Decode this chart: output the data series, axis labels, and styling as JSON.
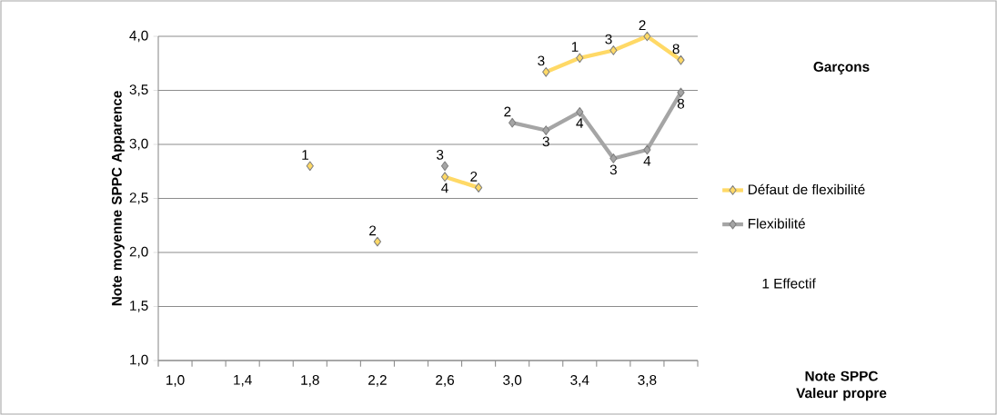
{
  "chart_data": {
    "type": "line",
    "title": "Garçons",
    "ylabel": "Note moyenne SPPC Apparence",
    "xlim": [
      0.9,
      4.1
    ],
    "xticks": [
      {
        "value": 1.0,
        "label": "1,0"
      },
      {
        "value": 1.4,
        "label": "1,4"
      },
      {
        "value": 1.8,
        "label": "1,8"
      },
      {
        "value": 2.2,
        "label": "2,2"
      },
      {
        "value": 2.6,
        "label": "2,6"
      },
      {
        "value": 3.0,
        "label": "3,0"
      },
      {
        "value": 3.4,
        "label": "3,4"
      },
      {
        "value": 3.8,
        "label": "3,8"
      },
      {
        "value": 0.9,
        "label": null
      },
      {
        "value": 1.1,
        "label": null
      },
      {
        "value": 1.3,
        "label": null
      },
      {
        "value": 1.5,
        "label": null
      },
      {
        "value": 1.7,
        "label": null
      },
      {
        "value": 1.9,
        "label": null
      },
      {
        "value": 2.1,
        "label": null
      },
      {
        "value": 2.3,
        "label": null
      },
      {
        "value": 2.5,
        "label": null
      },
      {
        "value": 2.7,
        "label": null
      },
      {
        "value": 2.9,
        "label": null
      },
      {
        "value": 3.1,
        "label": null
      },
      {
        "value": 3.3,
        "label": null
      },
      {
        "value": 3.5,
        "label": null
      },
      {
        "value": 3.7,
        "label": null
      },
      {
        "value": 3.9,
        "label": null
      },
      {
        "value": 4.1,
        "label": null
      }
    ],
    "series": [
      {
        "name": "Défaut de flexibilité",
        "color": "#ffd966",
        "x": [
          1.8,
          2.0,
          2.2,
          2.4,
          2.6,
          2.8,
          3.0,
          3.2,
          3.4,
          3.6,
          3.8,
          4.0
        ],
        "values": [
          2.8,
          null,
          2.1,
          null,
          2.7,
          2.6,
          null,
          3.67,
          3.8,
          3.87,
          4.0,
          3.78
        ]
      },
      {
        "name": "Flexibilité",
        "color": "#a5a5a5",
        "x": [
          2.6,
          2.8,
          3.0,
          3.2,
          3.4,
          3.6,
          3.8,
          4.0
        ],
        "values": [
          2.8,
          null,
          3.2,
          3.13,
          3.3,
          2.87,
          2.95,
          3.48
        ]
      }
    ],
    "ylim": [
      1,
      4
    ],
    "yticks": [
      {
        "value": 1,
        "label": "1,0"
      },
      {
        "value": 1.5,
        "label": "1,5"
      },
      {
        "value": 2,
        "label": "2,0"
      },
      {
        "value": 2.5,
        "label": "2,5"
      },
      {
        "value": 3,
        "label": "3,0"
      },
      {
        "value": 3.5,
        "label": "3,5"
      },
      {
        "value": 4,
        "label": "4,0"
      }
    ],
    "grid": "y",
    "legend": "right",
    "marker": "diamond",
    "line_style": "solid",
    "annotations": [
      {
        "text": "1",
        "x": 1.8,
        "y": 2.8
      },
      {
        "text": "2",
        "x": 2.2,
        "y": 2.1
      },
      {
        "text": "4",
        "x": 2.6,
        "y": 2.7
      },
      {
        "text": "2",
        "x": 2.8,
        "y": 2.6
      },
      {
        "text": "3",
        "x": 3.2,
        "y": 3.67
      },
      {
        "text": "1",
        "x": 3.4,
        "y": 3.8
      },
      {
        "text": "3",
        "x": 3.6,
        "y": 3.87
      },
      {
        "text": "2",
        "x": 3.8,
        "y": 4.0
      },
      {
        "text": "8",
        "x": 4.0,
        "y": 3.78
      },
      {
        "text": "3",
        "x": 2.6,
        "y": 2.8
      },
      {
        "text": "2",
        "x": 3.0,
        "y": 3.2
      },
      {
        "text": "3",
        "x": 3.2,
        "y": 3.13
      },
      {
        "text": "4",
        "x": 3.4,
        "y": 3.3
      },
      {
        "text": "3",
        "x": 3.6,
        "y": 2.87
      },
      {
        "text": "4",
        "x": 3.8,
        "y": 2.95
      },
      {
        "text": "8",
        "x": 4.0,
        "y": 3.48
      },
      "1 Effectif",
      "Note SPPC Valeur propre"
    ]
  }
}
